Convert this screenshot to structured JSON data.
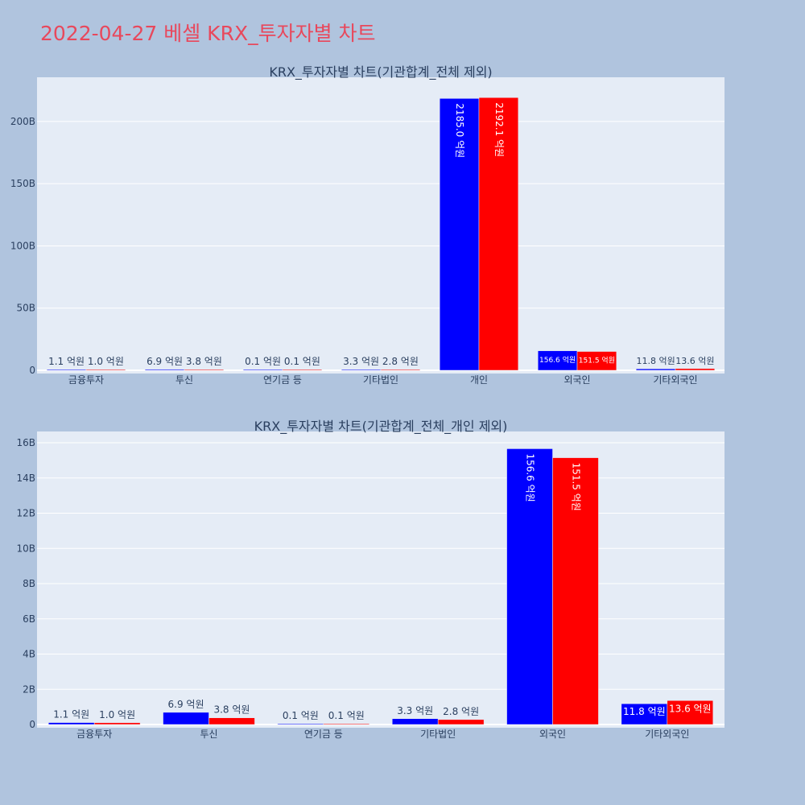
{
  "title": "2022-04-27 베셀 KRX_투자자별 차트",
  "colors": {
    "series_a": "#0000ff",
    "series_b": "#ff0000",
    "plot_bg": "#e5ecf6",
    "page_bg": "#b0c4de",
    "title": "#e8485c"
  },
  "chart_data": [
    {
      "type": "bar",
      "title": "KRX_투자자별 차트(기관합계_전체 제외)",
      "categories": [
        "금융투자",
        "투신",
        "연기금 등",
        "기타법인",
        "개인",
        "외국인",
        "기타외국인"
      ],
      "series": [
        {
          "values": [
            0.11,
            0.69,
            0.01,
            0.33,
            218.5,
            15.66,
            1.18
          ],
          "labels": [
            "1.1 억원",
            "6.9 억원",
            "0.1 억원",
            "3.3 억원",
            "2185.0 억원",
            "156.6 억원",
            "11.8 억원"
          ]
        },
        {
          "values": [
            0.1,
            0.38,
            0.01,
            0.28,
            219.21,
            15.15,
            1.36
          ],
          "labels": [
            "1.0 억원",
            "3.8 억원",
            "0.1 억원",
            "2.8 억원",
            "2192.1 억원",
            "151.5 억원",
            "13.6 억원"
          ]
        }
      ],
      "yticks": [
        0,
        50,
        100,
        150,
        200
      ],
      "ytick_labels": [
        "0",
        "50B",
        "100B",
        "150B",
        "200B"
      ],
      "ylim": [
        0,
        231
      ],
      "xlabel": "",
      "ylabel": "",
      "grid": true
    },
    {
      "type": "bar",
      "title": "KRX_투자자별 차트(기관합계_전체_개인 제외)",
      "categories": [
        "금융투자",
        "투신",
        "연기금 등",
        "기타법인",
        "외국인",
        "기타외국인"
      ],
      "series": [
        {
          "values": [
            0.11,
            0.69,
            0.01,
            0.33,
            15.66,
            1.18
          ],
          "labels": [
            "1.1 억원",
            "6.9 억원",
            "0.1 억원",
            "3.3 억원",
            "156.6 억원",
            "11.8 억원"
          ]
        },
        {
          "values": [
            0.1,
            0.38,
            0.01,
            0.28,
            15.15,
            1.36
          ],
          "labels": [
            "1.0 억원",
            "3.8 억원",
            "0.1 억원",
            "2.8 억원",
            "151.5 억원",
            "13.6 억원"
          ]
        }
      ],
      "yticks": [
        0,
        2,
        4,
        6,
        8,
        10,
        12,
        14,
        16
      ],
      "ytick_labels": [
        "0",
        "2B",
        "4B",
        "6B",
        "8B",
        "10B",
        "12B",
        "14B",
        "16B"
      ],
      "ylim": [
        0,
        16.5
      ],
      "xlabel": "",
      "ylabel": "",
      "grid": true
    }
  ]
}
